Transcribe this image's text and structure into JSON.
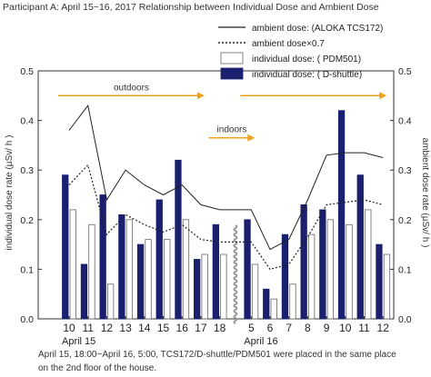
{
  "title": "Participant A: April 15~16, 2017 Relationship between Individual Dose and Ambient Dose",
  "caption": {
    "line1": "April 15, 18:00~April 16, 5:00, TCS172/D-shuttle/PDM501 were placed in the same place",
    "line2": "on the 2nd floor of the house."
  },
  "chart_data": {
    "type": "bar",
    "categories": [
      "10",
      "11",
      "12",
      "13",
      "14",
      "15",
      "16",
      "17",
      "18",
      "5",
      "6",
      "7",
      "8",
      "9",
      "10",
      "11",
      "12"
    ],
    "date_labels": [
      {
        "label": "April 15",
        "index": 0
      },
      {
        "label": "April 16",
        "index": 9
      }
    ],
    "ylabel_left": "individual dose rate (µSv/ h )",
    "ylabel_right": "ambient dose rate (µSv/ h )",
    "ylim": [
      0,
      0.5
    ],
    "yticks": [
      "0.0",
      "0.1",
      "0.2",
      "0.3",
      "0.4",
      "0.5"
    ],
    "series": [
      {
        "name": "individual dose: ( PDM501)",
        "kind": "bar",
        "color": "#ffffff",
        "stroke": "#666666",
        "values": [
          0.22,
          0.19,
          0.07,
          0.2,
          0.16,
          0.16,
          0.2,
          0.13,
          0.13,
          0.11,
          0.04,
          0.07,
          0.17,
          0.2,
          0.19,
          0.22,
          0.13
        ]
      },
      {
        "name": "individual dose: ( D-shuttle)",
        "kind": "bar",
        "color": "#1a1f6e",
        "stroke": "#1a1f6e",
        "values": [
          0.29,
          0.11,
          0.25,
          0.21,
          0.15,
          0.24,
          0.32,
          0.12,
          0.19,
          0.2,
          0.06,
          0.17,
          0.23,
          0.22,
          0.42,
          0.29,
          0.15
        ]
      },
      {
        "name": "ambient dose: (ALOKA TCS172)",
        "kind": "line",
        "color": "#222222",
        "values": [
          0.38,
          0.43,
          0.24,
          0.3,
          0.27,
          0.25,
          0.27,
          0.23,
          0.22,
          0.22,
          0.14,
          0.16,
          0.24,
          0.33,
          0.335,
          0.335,
          0.325
        ]
      },
      {
        "name": "ambient dose×0.7",
        "kind": "dotted",
        "color": "#222222",
        "values": [
          0.27,
          0.31,
          0.17,
          0.21,
          0.19,
          0.175,
          0.19,
          0.16,
          0.155,
          0.155,
          0.1,
          0.11,
          0.165,
          0.23,
          0.235,
          0.24,
          0.23
        ]
      }
    ],
    "annotations": [
      {
        "text": "outdoors",
        "from_index": 0,
        "to_index": 7,
        "level": 0.45
      },
      {
        "text": "indoors",
        "from_index": 8,
        "to_index": 9,
        "level": 0.365
      },
      {
        "text": "",
        "from_index": 9,
        "to_index": 16,
        "level": 0.45
      }
    ],
    "arrow_color": "#f0a020",
    "break_between": [
      8,
      9
    ],
    "grid": false,
    "legend_position": "top-right"
  }
}
